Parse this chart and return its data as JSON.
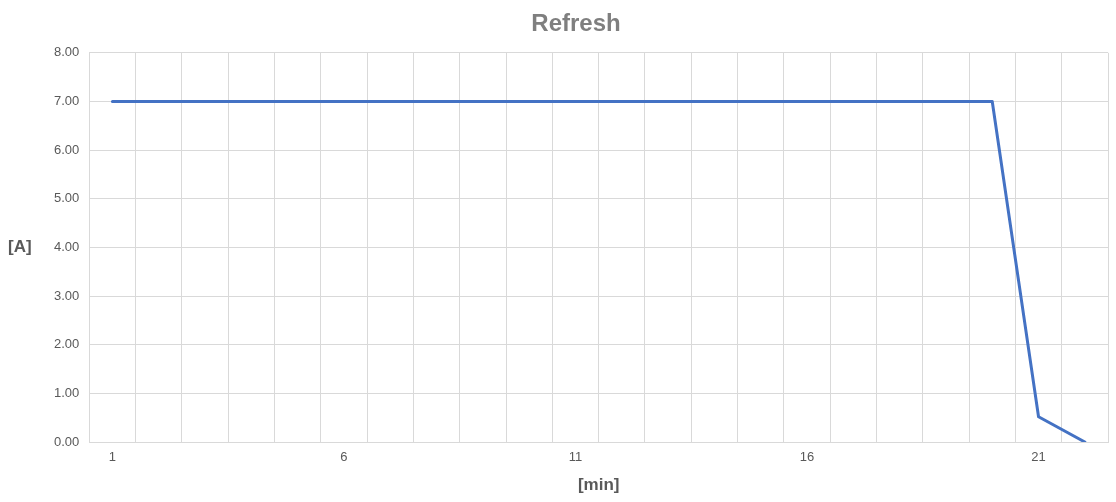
{
  "chart_data": {
    "type": "line",
    "title": "Refresh",
    "xlabel": "[min]",
    "ylabel": "[A]",
    "categories": [
      "1",
      null,
      null,
      null,
      null,
      "6",
      null,
      null,
      null,
      null,
      "11",
      null,
      null,
      null,
      null,
      "16",
      null,
      null,
      null,
      null,
      "21",
      null
    ],
    "series": [
      {
        "color": "#4472c4",
        "values": [
          7,
          7,
          7,
          7,
          7,
          7,
          7,
          7,
          7,
          7,
          7,
          7,
          7,
          7,
          7,
          7,
          7,
          7,
          7,
          7,
          0.52,
          0
        ]
      }
    ],
    "ylim": [
      0,
      8
    ],
    "yticks": [
      {
        "value": 0,
        "label": "0.00"
      },
      {
        "value": 1,
        "label": "1.00"
      },
      {
        "value": 2,
        "label": "2.00"
      },
      {
        "value": 3,
        "label": "3.00"
      },
      {
        "value": 4,
        "label": "4.00"
      },
      {
        "value": 5,
        "label": "5.00"
      },
      {
        "value": 6,
        "label": "6.00"
      },
      {
        "value": 7,
        "label": "7.00"
      },
      {
        "value": 8,
        "label": "8.00"
      }
    ],
    "grid": true,
    "legend": false,
    "marker": "none",
    "line_style": "solid"
  }
}
